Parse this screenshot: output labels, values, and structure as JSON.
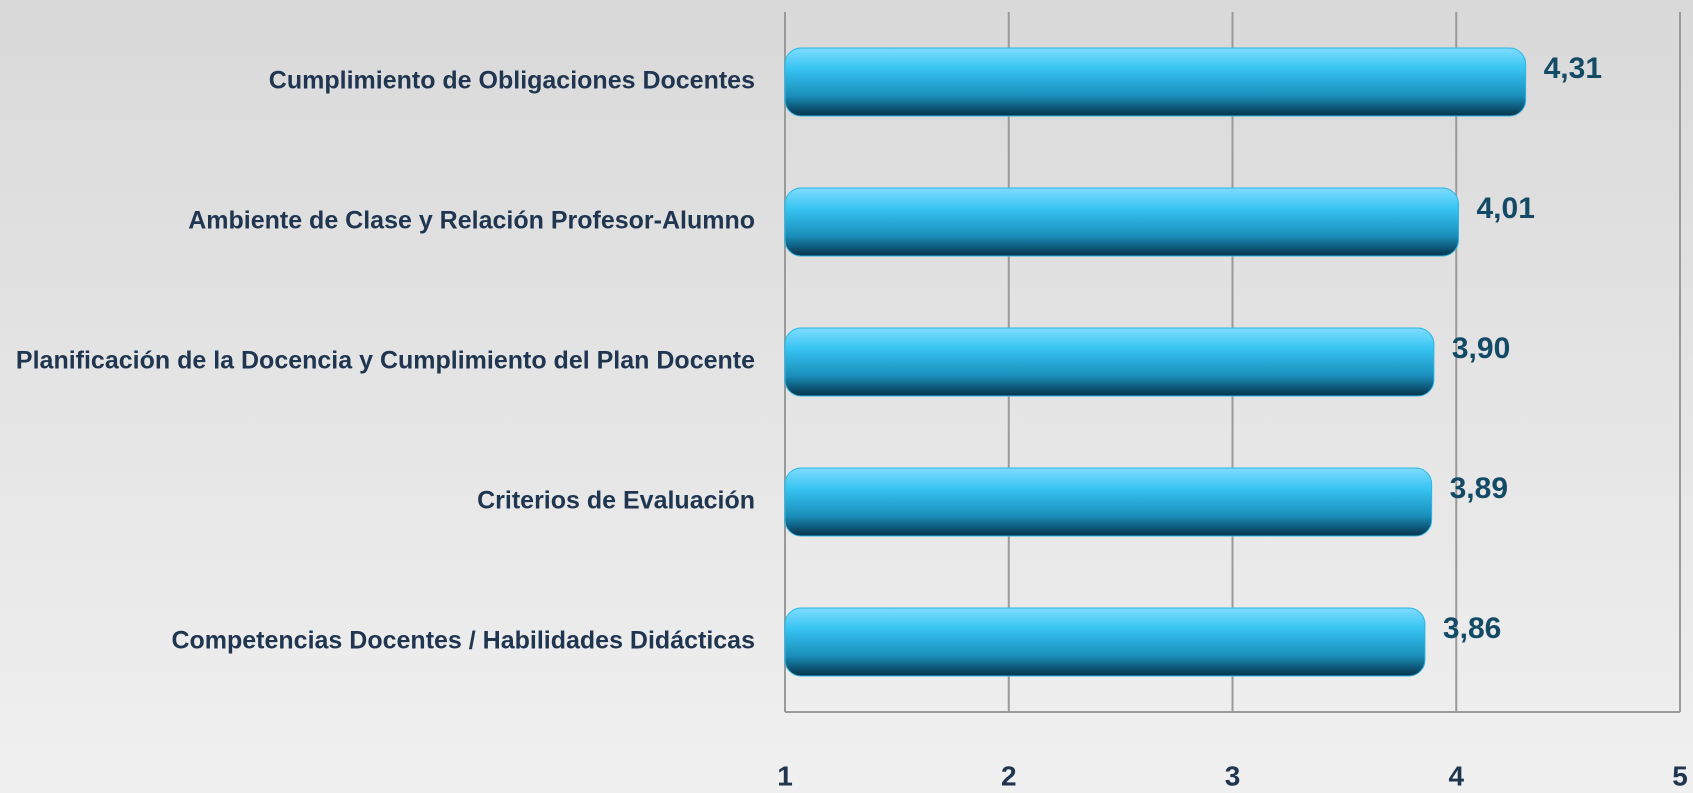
{
  "chart_data": {
    "type": "bar",
    "orientation": "horizontal",
    "categories": [
      "Cumplimiento de Obligaciones Docentes",
      "Ambiente de Clase y Relación Profesor-Alumno",
      "Planificación de la Docencia y Cumplimiento del Plan Docente",
      "Criterios de Evaluación",
      "Competencias Docentes / Habilidades Didácticas"
    ],
    "values": [
      4.31,
      4.01,
      3.9,
      3.89,
      3.86
    ],
    "value_labels": [
      "4,31",
      "4,01",
      "3,90",
      "3,89",
      "3,86"
    ],
    "color": "#29b6e6",
    "xlim": [
      1,
      5
    ],
    "xticks": [
      1,
      2,
      3,
      4,
      5
    ],
    "grid": true
  }
}
